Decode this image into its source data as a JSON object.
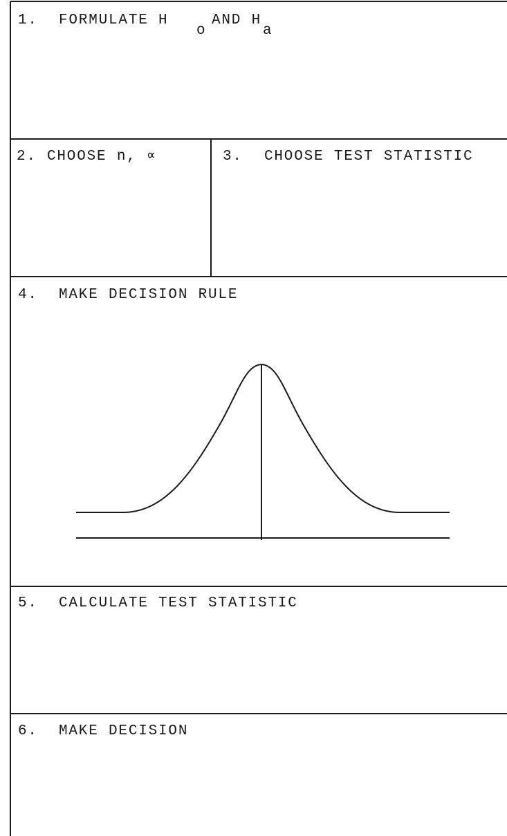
{
  "sections": [
    {
      "number": "1.",
      "parts": [
        "FORMULATE H",
        "o",
        "AND H",
        "a"
      ]
    },
    {
      "number": "2.",
      "label": "CHOOSE n, ∝"
    },
    {
      "number": "3.",
      "label": "CHOOSE TEST STATISTIC"
    },
    {
      "number": "4.",
      "label": "MAKE DECISION RULE"
    },
    {
      "number": "5.",
      "label": "CALCULATE TEST STATISTIC"
    },
    {
      "number": "6.",
      "label": "MAKE DECISION"
    }
  ]
}
